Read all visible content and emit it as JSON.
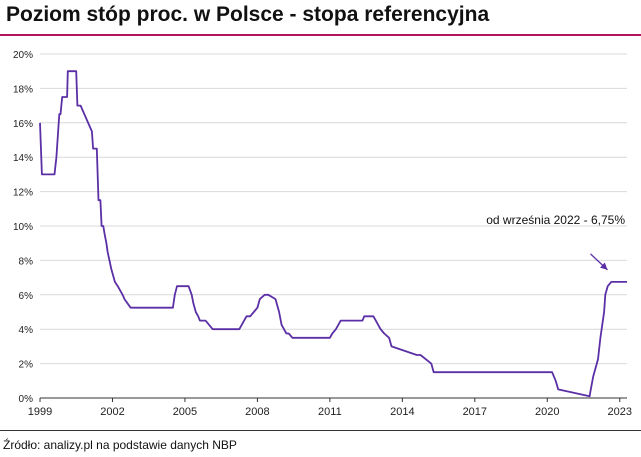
{
  "title": "Poziom stóp proc. w Polsce - stopa referencyjna",
  "source": "Źródło: analizy.pl na podstawie danych NBP",
  "colors": {
    "line": "#5b2fa6",
    "accent": "#b2125f",
    "grid": "#d9d9d9",
    "axis": "#333333"
  },
  "chart_data": {
    "type": "line",
    "title": "Poziom stóp proc. w Polsce - stopa referencyjna",
    "xlabel": "",
    "ylabel": "",
    "xlim": [
      1999,
      2023.3
    ],
    "ylim": [
      0,
      20
    ],
    "y_ticks": [
      0,
      2,
      4,
      6,
      8,
      10,
      12,
      14,
      16,
      18,
      20
    ],
    "y_tick_labels": [
      "0%",
      "2%",
      "4%",
      "6%",
      "8%",
      "10%",
      "12%",
      "14%",
      "16%",
      "18%",
      "20%"
    ],
    "x_ticks": [
      1999,
      2002,
      2005,
      2008,
      2011,
      2014,
      2017,
      2020,
      2023
    ],
    "x_tick_labels": [
      "1999",
      "2002",
      "2005",
      "2008",
      "2011",
      "2014",
      "2017",
      "2020",
      "2023"
    ],
    "grid": "horizontal",
    "annotation": {
      "text": "od września 2022 - 6,75%",
      "x": 2022.7,
      "y": 6.75
    },
    "series": [
      {
        "x": [
          1999.0,
          1999.08,
          1999.6,
          1999.68,
          1999.8,
          1999.85,
          1999.92,
          2000.0,
          2000.08,
          2000.12,
          2000.15,
          2000.2,
          2000.5,
          2000.55,
          2000.68,
          2001.15,
          2001.2,
          2001.35,
          2001.42,
          2001.5,
          2001.55,
          2001.62,
          2001.68,
          2001.75,
          2001.8,
          2001.95,
          2002.1,
          2002.22,
          2002.42,
          2002.5,
          2002.75,
          2002.85,
          2002.95,
          2003.42,
          2003.5,
          2004.5,
          2004.58,
          2004.67,
          2005.15,
          2005.28,
          2005.35,
          2005.45,
          2005.55,
          2005.62,
          2005.7,
          2005.85,
          2006.15,
          2006.25,
          2007.25,
          2007.35,
          2007.45,
          2007.55,
          2007.7,
          2007.85,
          2008.0,
          2008.1,
          2008.3,
          2008.45,
          2008.75,
          2008.9,
          2009.0,
          2009.1,
          2009.2,
          2009.3,
          2009.45,
          2011.0,
          2011.1,
          2011.25,
          2011.45,
          2012.35,
          2012.42,
          2012.8,
          2012.9,
          2013.0,
          2013.1,
          2013.25,
          2013.45,
          2013.55,
          2014.6,
          2014.75,
          2015.2,
          2015.3,
          2020.2,
          2020.35,
          2020.45,
          2021.75,
          2021.8,
          2021.9,
          2022.0,
          2022.1,
          2022.2,
          2022.35,
          2022.4,
          2022.5,
          2022.65,
          2022.75,
          2023.3
        ],
        "y": [
          16.0,
          13.0,
          13.0,
          14.0,
          16.5,
          16.5,
          17.5,
          17.5,
          17.5,
          17.5,
          19.0,
          19.0,
          19.0,
          17.0,
          17.0,
          15.5,
          14.5,
          14.5,
          11.5,
          11.5,
          10.0,
          10.0,
          9.5,
          9.0,
          8.5,
          7.5,
          6.75,
          6.5,
          6.0,
          5.75,
          5.25,
          5.25,
          5.25,
          5.25,
          5.25,
          5.25,
          6.0,
          6.5,
          6.5,
          6.0,
          5.5,
          5.0,
          4.75,
          4.5,
          4.5,
          4.5,
          4.0,
          4.0,
          4.0,
          4.25,
          4.5,
          4.75,
          4.75,
          5.0,
          5.25,
          5.75,
          6.0,
          6.0,
          5.75,
          5.0,
          4.25,
          4.0,
          3.75,
          3.75,
          3.5,
          3.5,
          3.75,
          4.0,
          4.5,
          4.5,
          4.75,
          4.75,
          4.5,
          4.25,
          4.0,
          3.75,
          3.5,
          3.0,
          2.5,
          2.5,
          2.0,
          1.5,
          1.5,
          1.0,
          0.5,
          0.1,
          0.5,
          1.25,
          1.75,
          2.25,
          3.5,
          5.0,
          6.0,
          6.5,
          6.75,
          6.75,
          6.75
        ]
      }
    ]
  }
}
